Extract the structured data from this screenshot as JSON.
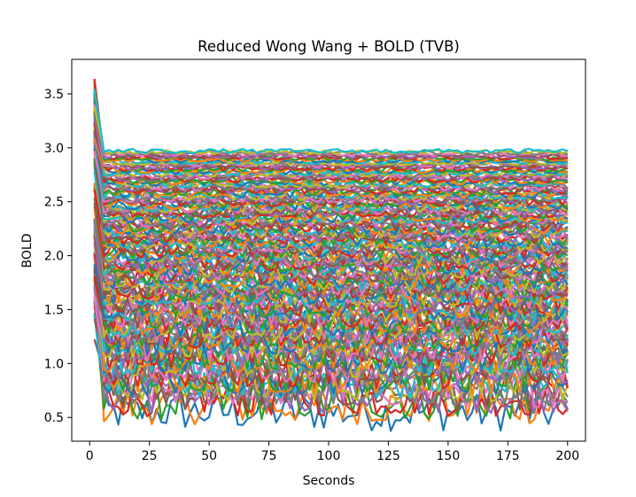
{
  "chart_data": {
    "type": "line",
    "title": "Reduced Wong Wang + BOLD (TVB)",
    "xlabel": "Seconds",
    "ylabel": "BOLD",
    "xlim": [
      -7.5,
      207.5
    ],
    "ylim": [
      0.28,
      3.82
    ],
    "xticks": [
      0,
      25,
      50,
      75,
      100,
      125,
      150,
      175,
      200
    ],
    "yticks": [
      0.5,
      1.0,
      1.5,
      2.0,
      2.5,
      3.0,
      3.5
    ],
    "xtick_labels": [
      "0",
      "25",
      "50",
      "75",
      "100",
      "125",
      "150",
      "175",
      "200"
    ],
    "ytick_labels": [
      "0.5",
      "1.0",
      "1.5",
      "2.0",
      "2.5",
      "3.0",
      "3.5"
    ],
    "x_start": 2,
    "x_end": 200,
    "x_step": 2,
    "grid": false,
    "legend": "none",
    "series_count": 180,
    "colors": [
      "#1f77b4",
      "#ff7f0e",
      "#2ca02c",
      "#d62728",
      "#9467bd",
      "#8c564b",
      "#e377c2",
      "#7f7f7f",
      "#bcbd22",
      "#17becf"
    ],
    "series_summary": {
      "steady_state_range": [
        0.55,
        2.97
      ],
      "initial_peak": 3.65,
      "lowest_series_mean": 0.55,
      "highest_series_mean": 2.97,
      "transient_end_seconds": 6
    }
  }
}
